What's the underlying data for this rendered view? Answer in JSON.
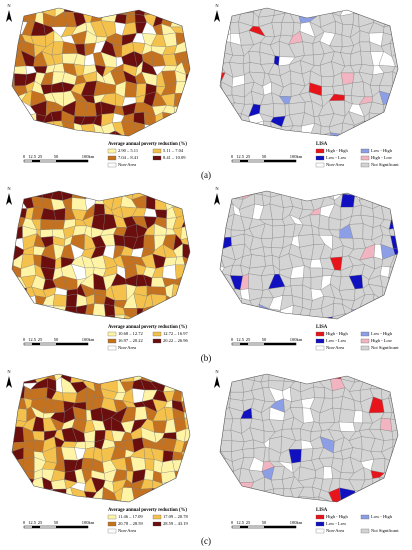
{
  "north": "N",
  "scale_labels": [
    "0",
    "12.5",
    "25",
    "50",
    "100km"
  ],
  "panels": [
    {
      "label": "(a)",
      "left": {
        "legend_title": "Average annual poverty reduction (%)",
        "classes": [
          "2.90 – 5.11",
          "5.11 – 7.04",
          "7.04 – 8.41",
          "8.41 – 10.09"
        ],
        "non_area": "Non-Area"
      },
      "right": {
        "legend_title": "LISA",
        "classes": [
          "High - High",
          "Low - High",
          "Low - Low",
          "High - Low"
        ],
        "non_area": "Non-Area",
        "not_significant": "Not Significant"
      }
    },
    {
      "label": "(b)",
      "left": {
        "legend_title": "Average annual poverty reduction (%)",
        "classes": [
          "10.68 – 12.72",
          "12.72 – 16.97",
          "16.97 – 20.22",
          "20.22 – 26.96"
        ],
        "non_area": "Non-Area"
      },
      "right": {
        "legend_title": "LISA",
        "classes": [
          "High - High",
          "Low - High",
          "Low - Low",
          "High - Low"
        ],
        "non_area": "Non-Area",
        "not_significant": "Not Significant"
      }
    },
    {
      "label": "(c)",
      "left": {
        "legend_title": "Average annual poverty reduction (%)",
        "classes": [
          "11.46 – 17.09",
          "17.09 – 20.78",
          "20.78 – 28.59",
          "28.59 – 43.19"
        ],
        "non_area": "Non-Area"
      },
      "right": {
        "legend_title": "LISA",
        "classes": [
          "High - High",
          "Low - High",
          "Low - Low"
        ],
        "non_area": "Non-Area",
        "not_significant": "Not Significant"
      }
    }
  ]
}
